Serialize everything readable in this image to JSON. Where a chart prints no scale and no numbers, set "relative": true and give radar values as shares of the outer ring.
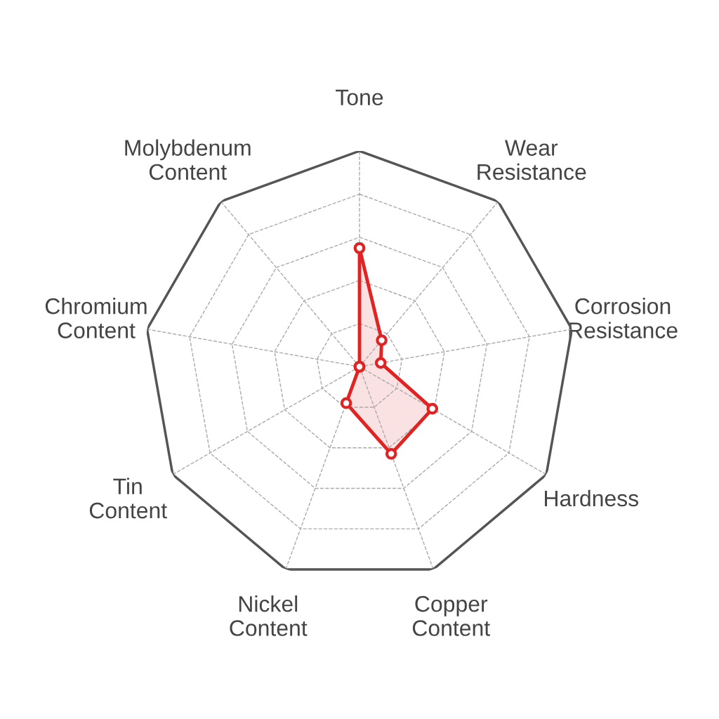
{
  "chart_data": {
    "type": "radar",
    "relative": true,
    "categories": [
      "Tone",
      "Wear\nResistance",
      "Corrosion\nResistance",
      "Hardness",
      "Copper\nContent",
      "Nickel\nContent",
      "Tin\nContent",
      "Chromium\nContent",
      "Molybdenum\nContent"
    ],
    "series": [
      {
        "color": "#e02424",
        "values": [
          0.55,
          0.16,
          0.1,
          0.39,
          0.43,
          0.18,
          0.0,
          0.0,
          0.0
        ]
      }
    ],
    "grid": true,
    "marker": "circle",
    "line_style": "solid"
  }
}
